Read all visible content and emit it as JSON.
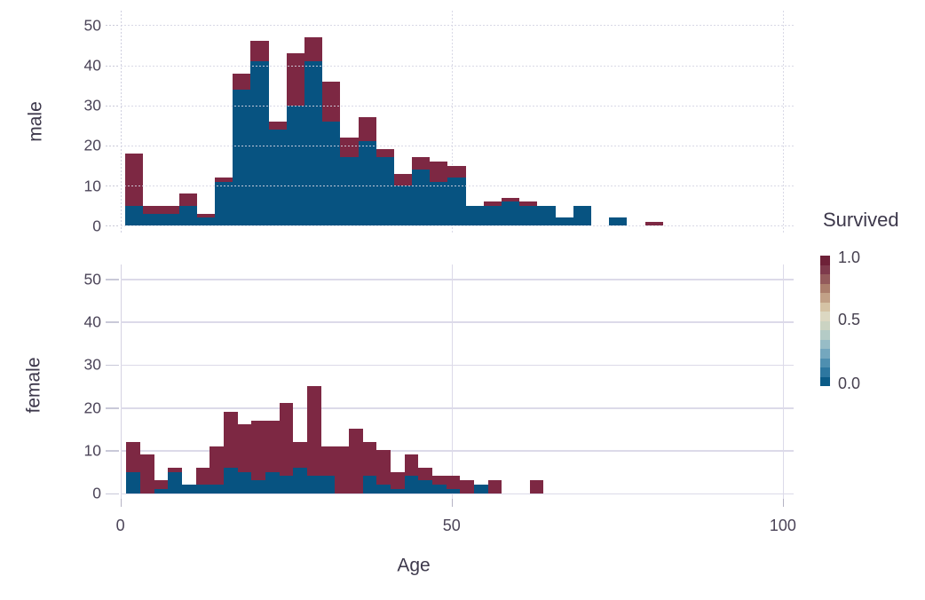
{
  "figure": {
    "facets": [
      {
        "label": "male"
      },
      {
        "label": "female"
      }
    ],
    "x_axis": {
      "title": "Age",
      "tick_labels": [
        "0",
        "50",
        "100"
      ],
      "tick_values": [
        0,
        50,
        100
      ]
    },
    "y_axis": {
      "tick_labels": [
        "50",
        "40",
        "30",
        "20",
        "10",
        "0"
      ],
      "tick_values": [
        50,
        40,
        30,
        20,
        10,
        0
      ]
    }
  },
  "legend": {
    "title": "Survived",
    "tick_labels": [
      "1.0",
      "0.5",
      "0.0"
    ],
    "band_colors_bottom_to_top": [
      "#0B5B87",
      "#2D77A0",
      "#4E8FB0",
      "#74A7BE",
      "#97BCC6",
      "#B4CBC6",
      "#CBD3C2",
      "#DCD8C2",
      "#D5C3A5",
      "#C2A187",
      "#AB7E6C",
      "#935A5B",
      "#7E3A4C",
      "#6E2138"
    ]
  },
  "chart_data": [
    {
      "type": "bar",
      "subtype": "stacked-histogram",
      "facet": "male",
      "xlabel": "Age",
      "xlim": [
        0,
        101.6
      ],
      "ylim": [
        0,
        50
      ],
      "grid": true,
      "bin_start_age": 0.72,
      "bin_width_age": 2.706,
      "n_bins": 30,
      "series": [
        {
          "name": "Survived=0.0",
          "color": "#075381",
          "values": [
            5,
            3,
            3,
            5,
            2,
            11,
            34,
            41,
            24,
            30,
            41,
            26,
            17,
            21,
            17,
            10,
            14,
            11,
            12,
            5,
            5,
            6,
            5,
            5,
            2,
            5,
            0,
            2,
            0,
            0
          ]
        },
        {
          "name": "Survived=1.0",
          "color": "#7D2843",
          "values": [
            13,
            2,
            2,
            3,
            1,
            1,
            4,
            5,
            2,
            13,
            6,
            10,
            5,
            6,
            2,
            3,
            3,
            5,
            3,
            0,
            1,
            1,
            1,
            0,
            0,
            0,
            0,
            0,
            0,
            1
          ]
        }
      ]
    },
    {
      "type": "bar",
      "subtype": "stacked-histogram",
      "facet": "female",
      "xlabel": "Age",
      "xlim": [
        0,
        101.6
      ],
      "ylim": [
        0,
        50
      ],
      "grid": true,
      "bin_start_age": 0.9,
      "bin_width_age": 2.1,
      "n_bins": 30,
      "series": [
        {
          "name": "Survived=0.0",
          "color": "#075381",
          "values": [
            5,
            0,
            1,
            5,
            2,
            2,
            2,
            6,
            5,
            3,
            5,
            4,
            6,
            4,
            4,
            0,
            0,
            4,
            2,
            1,
            4,
            3,
            2,
            1,
            0,
            2,
            0,
            0,
            0,
            0
          ]
        },
        {
          "name": "Survived=1.0",
          "color": "#7D2843",
          "values": [
            7,
            9,
            2,
            1,
            0,
            4,
            9,
            13,
            11,
            14,
            12,
            17,
            6,
            21,
            7,
            11,
            15,
            8,
            8,
            4,
            5,
            3,
            2,
            3,
            3,
            0,
            3,
            0,
            0,
            3
          ]
        }
      ]
    }
  ]
}
